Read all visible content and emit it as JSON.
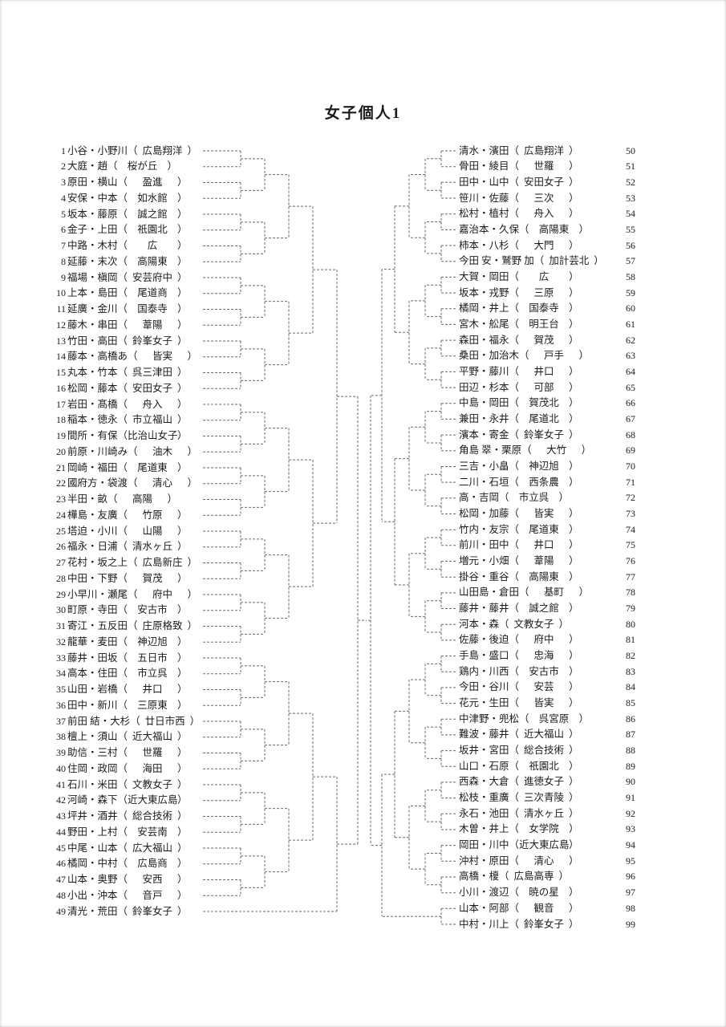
{
  "title": "女子個人1",
  "left": [
    {
      "n": 1,
      "names": "小谷・小野川",
      "school": "広島翔洋"
    },
    {
      "n": 2,
      "names": "大庭・趙",
      "school": "桜が丘"
    },
    {
      "n": 3,
      "names": "原田・横山",
      "school": "盈進"
    },
    {
      "n": 4,
      "names": "安保・中本",
      "school": "如水館"
    },
    {
      "n": 5,
      "names": "坂本・藤原",
      "school": "誠之館"
    },
    {
      "n": 6,
      "names": "金子・上田",
      "school": "祇園北"
    },
    {
      "n": 7,
      "names": "中路・木村",
      "school": "広"
    },
    {
      "n": 8,
      "names": "延藤・末次",
      "school": "高陽東"
    },
    {
      "n": 9,
      "names": "福場・槇岡",
      "school": "安芸府中"
    },
    {
      "n": 10,
      "names": "上本・島田",
      "school": "尾道商"
    },
    {
      "n": 11,
      "names": "延廣・金川",
      "school": "国泰寺"
    },
    {
      "n": 12,
      "names": "藤木・串田",
      "school": "葦陽"
    },
    {
      "n": 13,
      "names": "竹田・高田",
      "school": "鈴峯女子"
    },
    {
      "n": 14,
      "names": "藤本・高橋あ",
      "school": "皆実"
    },
    {
      "n": 15,
      "names": "丸本・竹本",
      "school": "呉三津田"
    },
    {
      "n": 16,
      "names": "松岡・藤本",
      "school": "安田女子"
    },
    {
      "n": 17,
      "names": "岩田・髙橋",
      "school": "舟入"
    },
    {
      "n": 18,
      "names": "稲本・徳永",
      "school": "市立福山"
    },
    {
      "n": 19,
      "names": "間所・有保",
      "school": "比治山女子"
    },
    {
      "n": 20,
      "names": "前原・川崎み",
      "school": "油木"
    },
    {
      "n": 21,
      "names": "岡崎・福田",
      "school": "尾道東"
    },
    {
      "n": 22,
      "names": "國府方・袋渡",
      "school": "清心"
    },
    {
      "n": 23,
      "names": "半田・畝",
      "school": "高陽"
    },
    {
      "n": 24,
      "names": "樺島・友廣",
      "school": "竹原"
    },
    {
      "n": 25,
      "names": "塔迫・小川",
      "school": "山陽"
    },
    {
      "n": 26,
      "names": "福永・日浦",
      "school": "清水ヶ丘"
    },
    {
      "n": 27,
      "names": "花村・坂之上",
      "school": "広島新庄"
    },
    {
      "n": 28,
      "names": "中田・下野",
      "school": "賀茂"
    },
    {
      "n": 29,
      "names": "小早川・瀬尾",
      "school": "府中"
    },
    {
      "n": 30,
      "names": "町原・寺田",
      "school": "安古市"
    },
    {
      "n": 31,
      "names": "寄江・五反田",
      "school": "庄原格致"
    },
    {
      "n": 32,
      "names": "龍華・麦田",
      "school": "神辺旭"
    },
    {
      "n": 33,
      "names": "藤井・田坂",
      "school": "五日市"
    },
    {
      "n": 34,
      "names": "高本・住田",
      "school": "市立呉"
    },
    {
      "n": 35,
      "names": "山田・岩橋",
      "school": "井口"
    },
    {
      "n": 36,
      "names": "田中・新川",
      "school": "三原東"
    },
    {
      "n": 37,
      "names": "前田 結・大杉",
      "school": "廿日市西"
    },
    {
      "n": 38,
      "names": "檀上・須山",
      "school": "近大福山"
    },
    {
      "n": 39,
      "names": "助信・三村",
      "school": "世羅"
    },
    {
      "n": 40,
      "names": "住岡・政岡",
      "school": "海田"
    },
    {
      "n": 41,
      "names": "石川・米田",
      "school": "文教女子"
    },
    {
      "n": 42,
      "names": "河崎・森下",
      "school": "近大東広島"
    },
    {
      "n": 43,
      "names": "坪井・酒井",
      "school": "総合技術"
    },
    {
      "n": 44,
      "names": "野田・上村",
      "school": "安芸南"
    },
    {
      "n": 45,
      "names": "中尾・山本",
      "school": "広大福山"
    },
    {
      "n": 46,
      "names": "橘岡・中村",
      "school": "広島商"
    },
    {
      "n": 47,
      "names": "山本・奥野",
      "school": "安西"
    },
    {
      "n": 48,
      "names": "小出・沖本",
      "school": "音戸"
    },
    {
      "n": 49,
      "names": "清光・荒田",
      "school": "鈴峯女子"
    }
  ],
  "right": [
    {
      "n": 50,
      "names": "清水・濱田",
      "school": "広島翔洋"
    },
    {
      "n": 51,
      "names": "骨田・綾目",
      "school": "世羅"
    },
    {
      "n": 52,
      "names": "田中・山中",
      "school": "安田女子"
    },
    {
      "n": 53,
      "names": "笹川・佐藤",
      "school": "三次"
    },
    {
      "n": 54,
      "names": "松村・植村",
      "school": "舟入"
    },
    {
      "n": 55,
      "names": "嘉治本・久保",
      "school": "高陽東"
    },
    {
      "n": 56,
      "names": "柿本・八杉",
      "school": "大門"
    },
    {
      "n": 57,
      "names": "今田 安・鷲野 加",
      "school": "加計芸北"
    },
    {
      "n": 58,
      "names": "大賀・岡田",
      "school": "広"
    },
    {
      "n": 59,
      "names": "坂本・戎野",
      "school": "三原"
    },
    {
      "n": 60,
      "names": "橘岡・井上",
      "school": "国泰寺"
    },
    {
      "n": 61,
      "names": "宮木・舩尾",
      "school": "明王台"
    },
    {
      "n": 62,
      "names": "森田・福永",
      "school": "賀茂"
    },
    {
      "n": 63,
      "names": "桑田・加治木",
      "school": "戸手"
    },
    {
      "n": 64,
      "names": "平野・藤川",
      "school": "井口"
    },
    {
      "n": 65,
      "names": "田辺・杉本",
      "school": "可部"
    },
    {
      "n": 66,
      "names": "中島・岡田",
      "school": "賀茂北"
    },
    {
      "n": 67,
      "names": "兼田・永井",
      "school": "尾道北"
    },
    {
      "n": 68,
      "names": "濱本・寄金",
      "school": "鈴峯女子"
    },
    {
      "n": 69,
      "names": "角島 翠・栗原",
      "school": "大竹"
    },
    {
      "n": 70,
      "names": "三吉・小畠",
      "school": "神辺旭"
    },
    {
      "n": 71,
      "names": "二川・石垣",
      "school": "西条農"
    },
    {
      "n": 72,
      "names": "高・吉岡",
      "school": "市立呉"
    },
    {
      "n": 73,
      "names": "松岡・加藤",
      "school": "皆実"
    },
    {
      "n": 74,
      "names": "竹内・友宗",
      "school": "尾道東"
    },
    {
      "n": 75,
      "names": "前川・田中",
      "school": "井口"
    },
    {
      "n": 76,
      "names": "増元・小畑",
      "school": "葦陽"
    },
    {
      "n": 77,
      "names": "掛谷・重谷",
      "school": "高陽東"
    },
    {
      "n": 78,
      "names": "山田島・倉田",
      "school": "基町"
    },
    {
      "n": 79,
      "names": "藤井・藤井",
      "school": "誠之館"
    },
    {
      "n": 80,
      "names": "河本・森",
      "school": "文教女子"
    },
    {
      "n": 81,
      "names": "佐藤・後迫",
      "school": "府中"
    },
    {
      "n": 82,
      "names": "手島・盛口",
      "school": "忠海"
    },
    {
      "n": 83,
      "names": "鶏内・川西",
      "school": "安古市"
    },
    {
      "n": 84,
      "names": "今田・谷川",
      "school": "安芸"
    },
    {
      "n": 85,
      "names": "花元・生田",
      "school": "皆実"
    },
    {
      "n": 86,
      "names": "中津野・兜松",
      "school": "呉宮原"
    },
    {
      "n": 87,
      "names": "難波・藤井",
      "school": "近大福山"
    },
    {
      "n": 88,
      "names": "坂井・宮田",
      "school": "総合技術"
    },
    {
      "n": 89,
      "names": "山口・石原",
      "school": "祇園北"
    },
    {
      "n": 90,
      "names": "西森・大倉",
      "school": "進徳女子"
    },
    {
      "n": 91,
      "names": "松枝・重廣",
      "school": "三次青陵"
    },
    {
      "n": 92,
      "names": "永石・池田",
      "school": "清水ヶ丘"
    },
    {
      "n": 93,
      "names": "木曽・井上",
      "school": "女学院"
    },
    {
      "n": 94,
      "names": "岡田・川中",
      "school": "近大東広島"
    },
    {
      "n": 95,
      "names": "沖村・原田",
      "school": "清心"
    },
    {
      "n": 96,
      "names": "高橋・榎",
      "school": "広島高専"
    },
    {
      "n": 97,
      "names": "小川・渡辺",
      "school": "暁の星"
    },
    {
      "n": 98,
      "names": "山本・阿部",
      "school": "観音"
    },
    {
      "n": 99,
      "names": "中村・川上",
      "school": "鈴峯女子"
    }
  ]
}
